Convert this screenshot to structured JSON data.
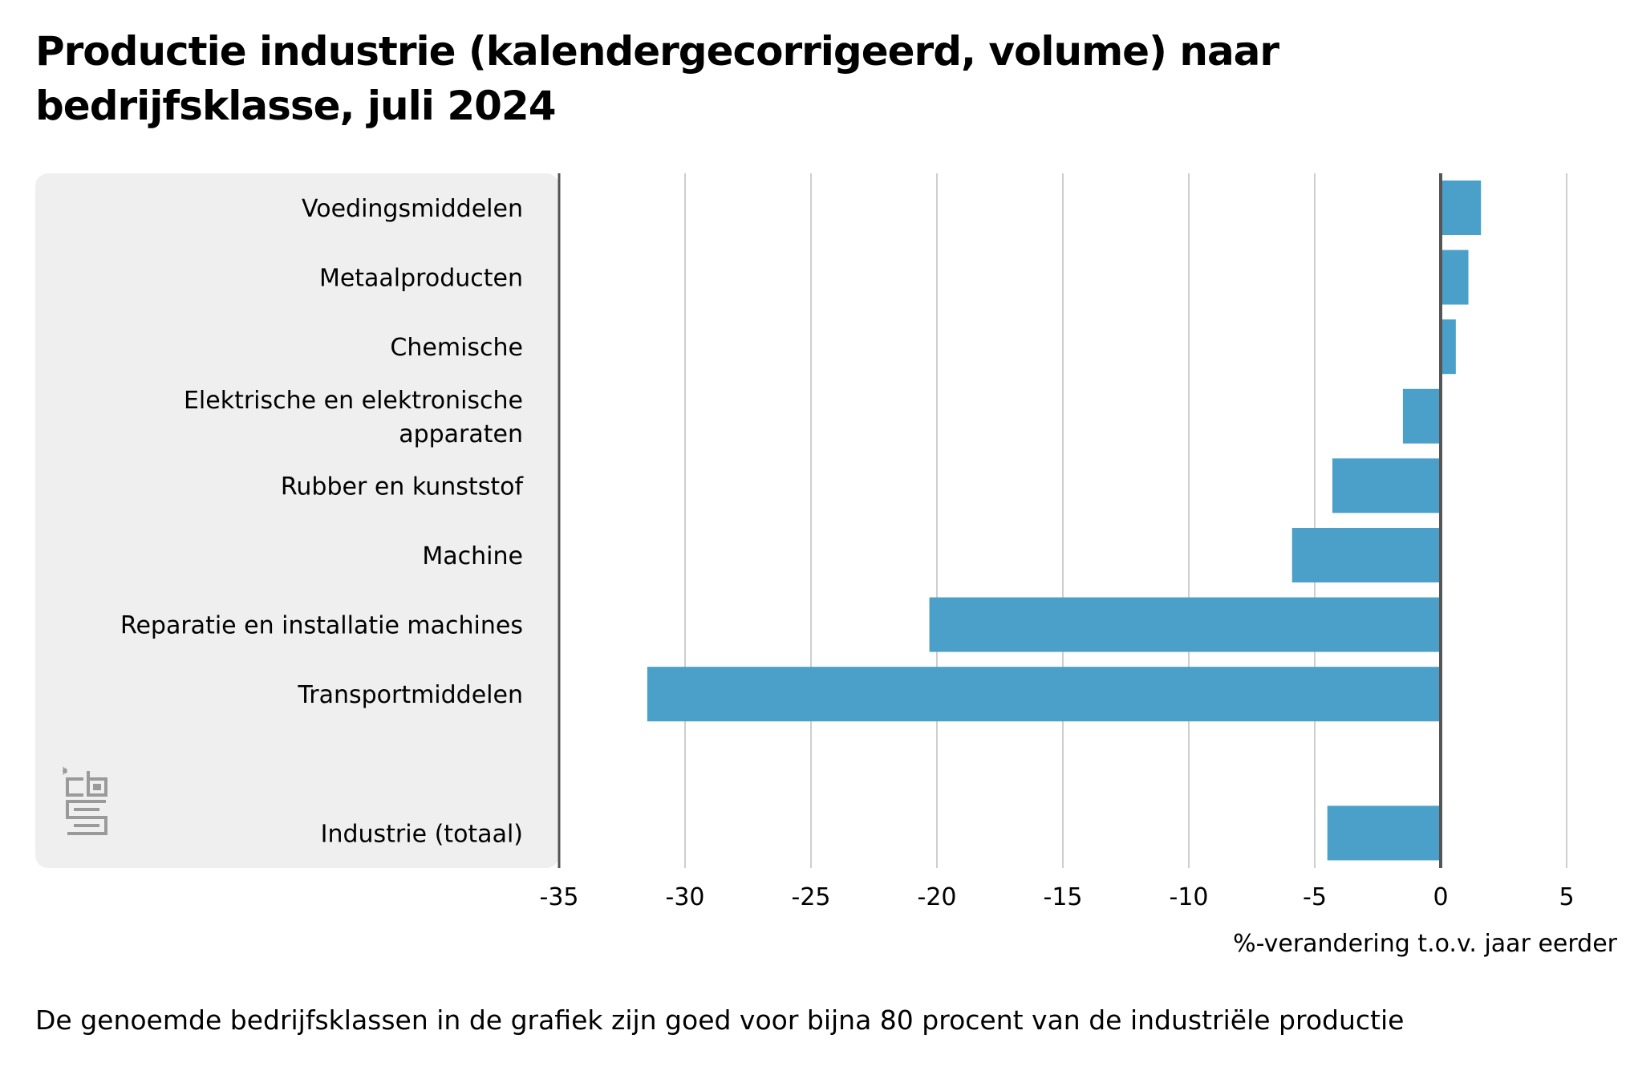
{
  "title": {
    "line1": "Productie industrie (kalendergecorrigeerd, volume) naar",
    "line2": "bedrijfsklasse, juli 2024"
  },
  "footnote": "De genoemde bedrijfsklassen in de grafiek zijn goed voor bijna 80 procent van de industriële productie",
  "logo_text": "cbs",
  "colors": {
    "bar": "#4aa0c9",
    "panel": "#efefef",
    "grid": "#bdbdbd",
    "axis": "#555555"
  },
  "chart_data": {
    "type": "bar",
    "orientation": "horizontal",
    "categories": [
      [
        "Voedingsmiddelen"
      ],
      [
        "Metaalproducten"
      ],
      [
        "Chemische"
      ],
      [
        "Elektrische en elektronische",
        "apparaten"
      ],
      [
        "Rubber en kunststof"
      ],
      [
        "Machine"
      ],
      [
        "Reparatie en installatie machines"
      ],
      [
        "Transportmiddelen"
      ],
      [
        ""
      ],
      [
        "Industrie (totaal)"
      ]
    ],
    "values": [
      1.6,
      1.1,
      0.6,
      -1.5,
      -4.3,
      -5.9,
      -20.3,
      -31.5,
      null,
      -4.5
    ],
    "xlim": [
      -35,
      5
    ],
    "xticks": [
      "-35",
      "-30",
      "-25",
      "-20",
      "-15",
      "-10",
      "-5",
      "0",
      "5"
    ],
    "xlabel": "%-verandering t.o.v. jaar eerder",
    "grid": true
  }
}
